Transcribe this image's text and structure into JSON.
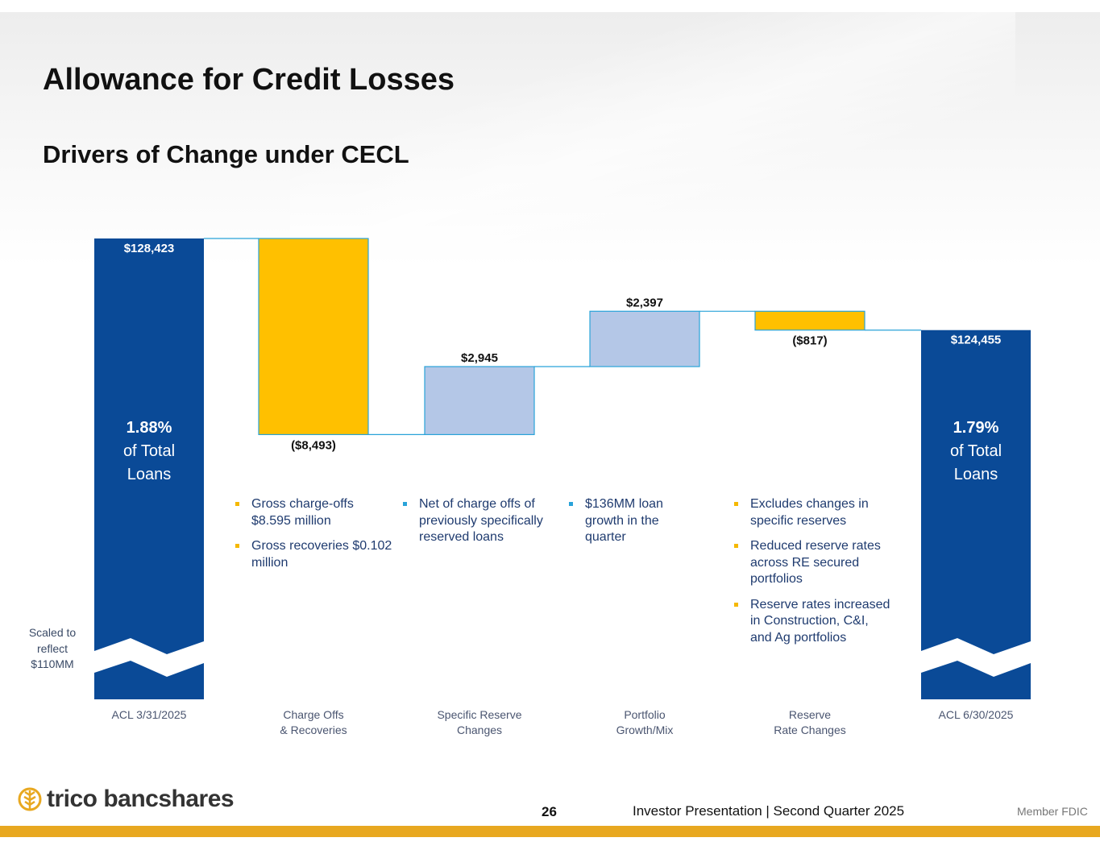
{
  "slide": {
    "title": "Allowance for Credit Losses",
    "subtitle": "Drivers of Change under CECL",
    "scale_note": "Scaled to reflect $110MM"
  },
  "colors": {
    "total_bar": "#0a4a97",
    "decrease": "#ffc000",
    "increase": "#b4c7e7",
    "connector": "#29a3d9",
    "footer_bar": "#e8a820"
  },
  "chart_data": {
    "type": "waterfall",
    "title": "Drivers of Change under CECL",
    "units": "$ thousands",
    "axis_break": "Scaled to reflect $110MM",
    "categories": [
      "ACL 3/31/2025",
      "Charge Offs\n& Recoveries",
      "Specific Reserve\nChanges",
      "Portfolio\nGrowth/Mix",
      "Reserve\nRate Changes",
      "ACL 6/30/2025"
    ],
    "values": [
      128423,
      -8493,
      2945,
      2397,
      -817,
      124455
    ],
    "kinds": [
      "total",
      "delta",
      "delta",
      "delta",
      "delta",
      "total"
    ],
    "value_labels": [
      "$128,423",
      "($8,493)",
      "$2,945",
      "$2,397",
      "($817)",
      "$124,455"
    ],
    "ratio_labels": [
      {
        "percent": "1.88%",
        "line1": "of Total",
        "line2": "Loans"
      },
      {
        "percent": "1.79%",
        "line1": "of Total",
        "line2": "Loans"
      }
    ],
    "ylim": [
      110000,
      128423
    ]
  },
  "annotations": [
    {
      "color": "gold",
      "items": [
        "Gross charge-offs $8.595 million",
        "Gross recoveries $0.102 million"
      ]
    },
    {
      "color": "blue",
      "items": [
        "Net of charge offs of previously specifically reserved loans"
      ]
    },
    {
      "color": "blue",
      "items": [
        "$136MM loan growth in the quarter"
      ]
    },
    {
      "color": "gold",
      "items": [
        "Excludes changes in specific reserves",
        "Reduced reserve rates across RE secured portfolios",
        "Reserve rates increased in Construction, C&I, and Ag portfolios"
      ]
    }
  ],
  "footer": {
    "logo_text": "trico bancshares",
    "page_number": "26",
    "presentation": "Investor Presentation  |  Second Quarter 2025",
    "member_fdic": "Member FDIC"
  }
}
